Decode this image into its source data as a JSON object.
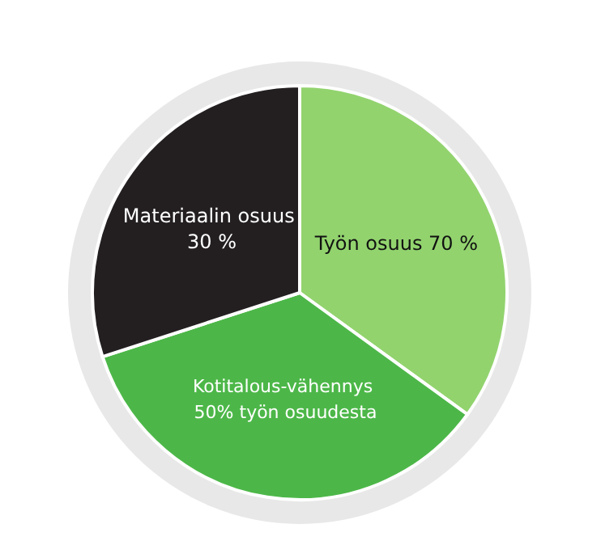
{
  "chart_data": {
    "type": "pie",
    "categories": [
      "Työn osuus 70 %",
      "Kotitalous-vähennys 50% työn osuudesta",
      "Materiaalin osuus 30 %"
    ],
    "values": [
      35,
      35,
      30
    ],
    "colors": [
      "#92d36e",
      "#4cb748",
      "#231f20"
    ],
    "legend": false
  }
}
